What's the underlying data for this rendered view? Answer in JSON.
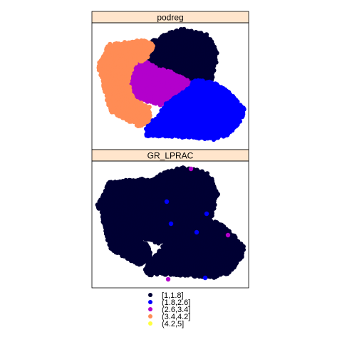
{
  "chart_data": {
    "type": "scatter",
    "description_kind": "lattice spatial point map, two stacked panels",
    "panels": [
      {
        "strip_label": "podreg",
        "regions": [
          {
            "class": "[1,1.8]",
            "area": "north-east lobe"
          },
          {
            "class": "(2.6,3.4]",
            "area": "central"
          },
          {
            "class": "(3.4,4.2]",
            "area": "west"
          },
          {
            "class": "(1.8,2.6]",
            "area": "south-east"
          }
        ]
      },
      {
        "strip_label": "GR_LPRAC",
        "dominant_class": "[1,1.8]",
        "sparse_classes": [
          "(1.8,2.6]",
          "(2.6,3.4]"
        ]
      }
    ],
    "legend": {
      "placement": "bottom",
      "entries": [
        {
          "label": "[1,1.8]",
          "color": "#000033"
        },
        {
          "label": "(1.8,2.6]",
          "color": "#0000FF"
        },
        {
          "label": "(2.6,3.4]",
          "color": "#B300CC"
        },
        {
          "label": "(3.4,4.2]",
          "color": "#FF8C55"
        },
        {
          "label": "(4.2,5]",
          "color": "#FFFF40"
        }
      ]
    },
    "strip_color": "#FFE5CC",
    "axes_visible": false,
    "grid": false
  }
}
